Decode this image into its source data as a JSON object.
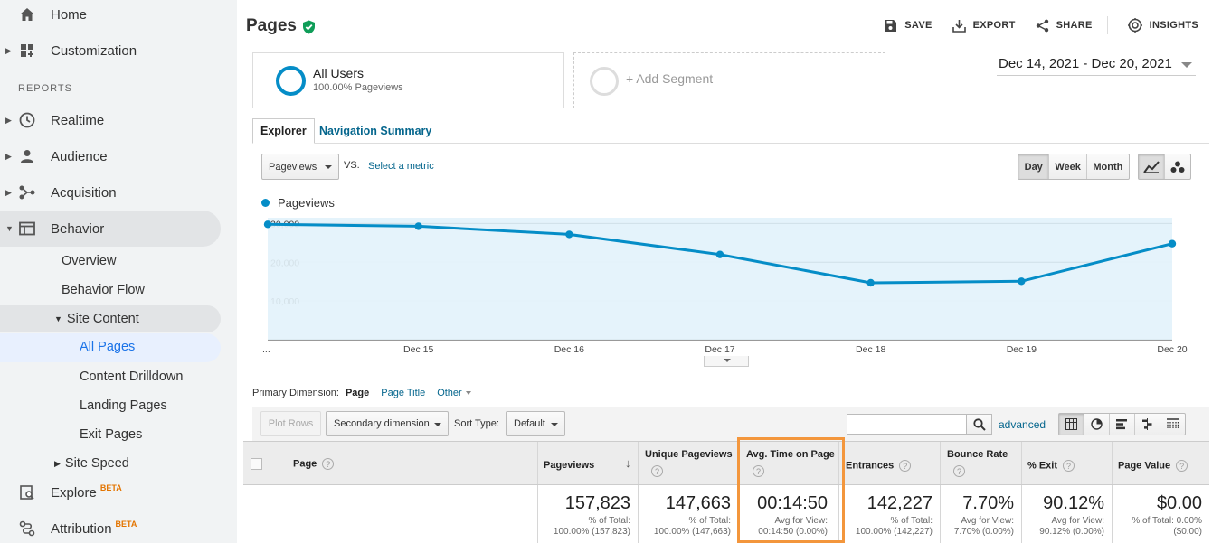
{
  "sidebar": {
    "home": "Home",
    "customization": "Customization",
    "reports_label": "REPORTS",
    "realtime": "Realtime",
    "audience": "Audience",
    "acquisition": "Acquisition",
    "behavior": "Behavior",
    "overview": "Overview",
    "behavior_flow": "Behavior Flow",
    "site_content": "Site Content",
    "all_pages": "All Pages",
    "content_drilldown": "Content Drilldown",
    "landing_pages": "Landing Pages",
    "exit_pages": "Exit Pages",
    "site_speed": "Site Speed",
    "explore": "Explore",
    "explore_badge": "BETA",
    "attribution": "Attribution",
    "attribution_badge": "BETA"
  },
  "header": {
    "title": "Pages",
    "save": "SAVE",
    "export": "EXPORT",
    "share": "SHARE",
    "insights": "INSIGHTS"
  },
  "segments": {
    "primary_name": "All Users",
    "primary_sub": "100.00% Pageviews",
    "add": "+ Add Segment"
  },
  "date_range": "Dec 14, 2021 - Dec 20, 2021",
  "tabs": {
    "explorer": "Explorer",
    "nav_summary": "Navigation Summary"
  },
  "chart_controls": {
    "metric": "Pageviews",
    "vs": "VS.",
    "select_metric": "Select a metric",
    "day": "Day",
    "week": "Week",
    "month": "Month"
  },
  "chart_data": {
    "type": "area",
    "title": "",
    "legend": [
      "Pageviews"
    ],
    "categories": [
      "...",
      "Dec 15",
      "Dec 16",
      "Dec 17",
      "Dec 18",
      "Dec 19",
      "Dec 20"
    ],
    "series": [
      {
        "name": "Pageviews",
        "values": [
          29800,
          29300,
          27200,
          22000,
          14700,
          15100,
          24800
        ]
      }
    ],
    "yticks": [
      10000,
      20000,
      30000
    ],
    "ytick_labels": [
      "10,000",
      "20,000",
      "30,000"
    ],
    "ylim": [
      0,
      31500
    ],
    "grid": true,
    "line_color": "#058dc7",
    "fill_color": "#e4f3fb"
  },
  "primary_dimension": {
    "label": "Primary Dimension:",
    "active": "Page",
    "page_title": "Page Title",
    "other": "Other"
  },
  "table_toolbar": {
    "plot_rows": "Plot Rows",
    "secondary_dimension": "Secondary dimension",
    "sort_type_label": "Sort Type:",
    "sort_type_value": "Default",
    "advanced": "advanced"
  },
  "table": {
    "headers": {
      "page": "Page",
      "pageviews": "Pageviews",
      "unique_pageviews": "Unique Pageviews",
      "avg_time": "Avg. Time on Page",
      "entrances": "Entrances",
      "bounce_rate": "Bounce Rate",
      "exit": "% Exit",
      "page_value": "Page Value"
    },
    "totals": {
      "pageviews": "157,823",
      "pageviews_sub1": "% of Total:",
      "pageviews_sub2": "100.00% (157,823)",
      "unique": "147,663",
      "unique_sub1": "% of Total:",
      "unique_sub2": "100.00% (147,663)",
      "avg_time": "00:14:50",
      "avg_time_sub1": "Avg for View:",
      "avg_time_sub2": "00:14:50 (0.00%)",
      "entrances": "142,227",
      "entrances_sub1": "% of Total:",
      "entrances_sub2": "100.00% (142,227)",
      "bounce": "7.70%",
      "bounce_sub1": "Avg for View:",
      "bounce_sub2": "7.70% (0.00%)",
      "exit": "90.12%",
      "exit_sub1": "Avg for View:",
      "exit_sub2": "90.12% (0.00%)",
      "value": "$0.00",
      "value_sub1": "% of Total: 0.00%",
      "value_sub2": "($0.00)"
    }
  }
}
